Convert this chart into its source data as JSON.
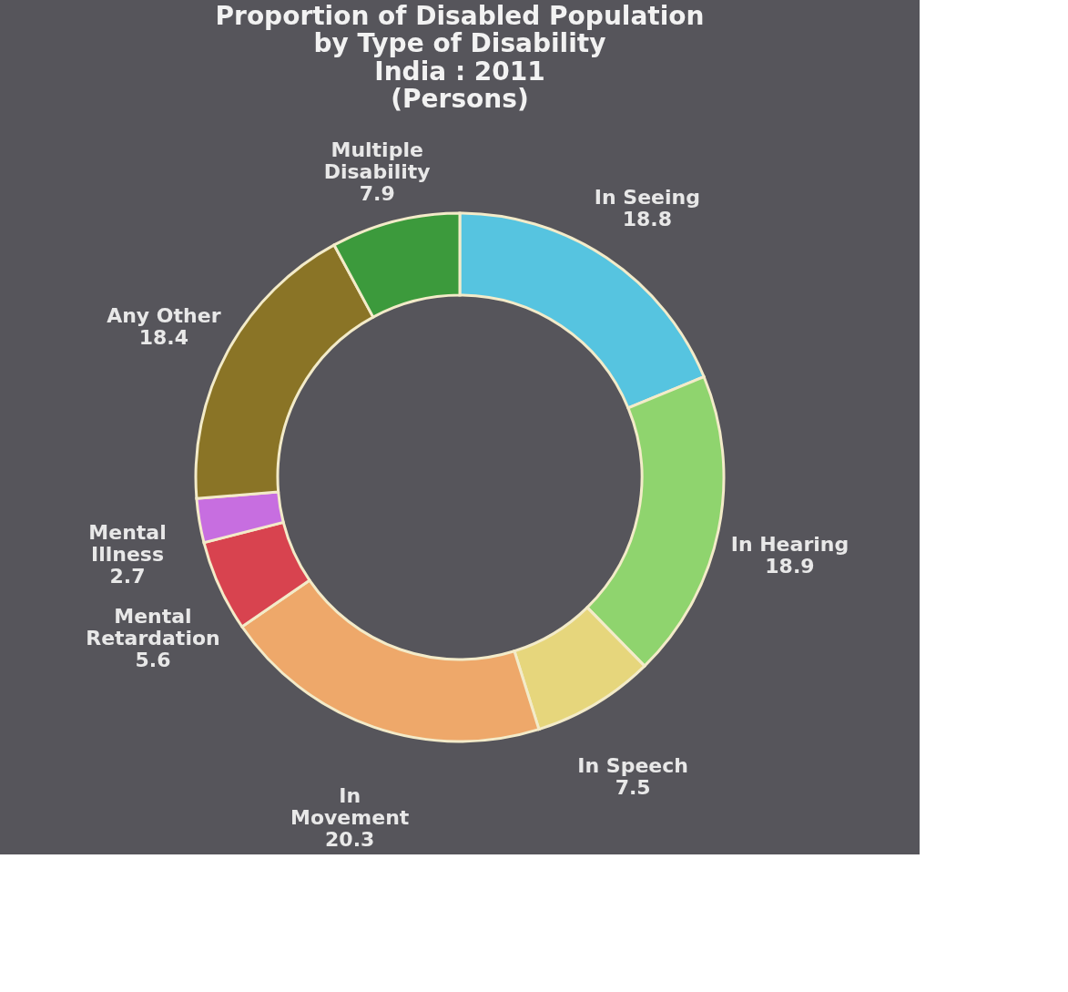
{
  "chart_data": {
    "type": "donut",
    "title": "Proportion of Disabled Population by Type of Disability",
    "subtitle": "India : 2011 (Persons)",
    "categories": [
      "In Seeing",
      "In Hearing",
      "In Speech",
      "In Movement",
      "Mental Retardation",
      "Mental Illness",
      "Any Other",
      "Multiple Disability"
    ],
    "values": [
      18.8,
      18.9,
      7.5,
      20.3,
      5.6,
      2.7,
      18.4,
      7.9
    ],
    "colors": [
      "#56c4e0",
      "#8fd46e",
      "#e6d67c",
      "#eea86a",
      "#d8434f",
      "#c76ee0",
      "#8a7426",
      "#3c9a3c"
    ],
    "data_labels": true,
    "legend": false
  }
}
